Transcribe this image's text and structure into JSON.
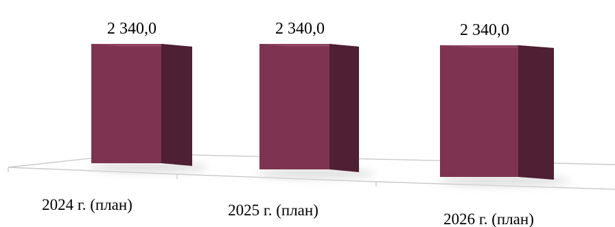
{
  "chart_data": {
    "type": "bar",
    "categories": [
      "2024 г. (план)",
      "2025 г. (план)",
      "2026 г. (план)"
    ],
    "series": [
      {
        "values": [
          2340.0,
          2340.0,
          2340.0
        ]
      }
    ],
    "data_labels": [
      "2 340,0",
      "2 340,0",
      "2 340,0"
    ],
    "title": "",
    "xlabel": "",
    "ylabel": "",
    "ylim": [
      0,
      2600
    ],
    "grid": false,
    "legend": "none",
    "style": "3d-perspective",
    "colors": {
      "bar_front": "#7e3450",
      "bar_side": "#4f1f33",
      "bar_top": "#8f4461",
      "floor_line": "#c9c9c9",
      "shadow": "#d9d9d9"
    }
  }
}
